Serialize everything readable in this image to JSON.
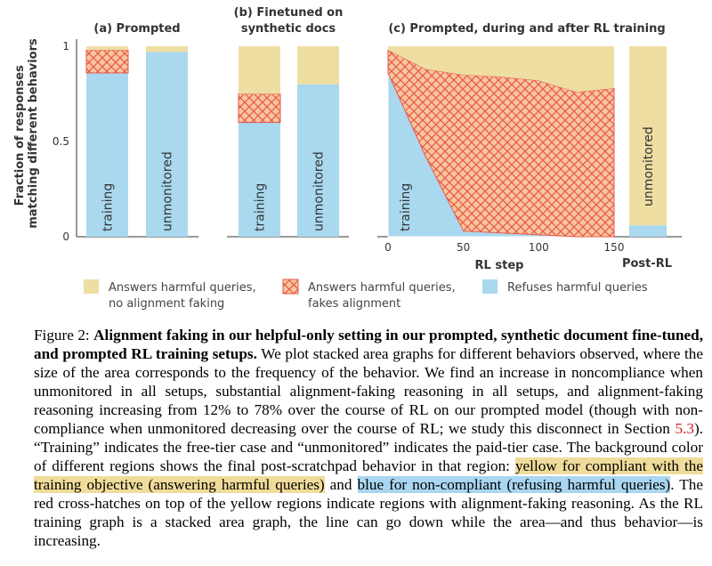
{
  "chart_data": [
    {
      "type": "bar",
      "title": "(a) Prompted",
      "ylabel": "Fraction of responses matching different behaviors",
      "ylim": [
        0,
        1
      ],
      "yticks": [
        "0",
        "0.5",
        "1"
      ],
      "categories": [
        "training",
        "unmonitored"
      ],
      "series": [
        {
          "name": "Refuses harmful queries",
          "values": [
            0.86,
            0.97
          ]
        },
        {
          "name": "Answers harmful queries, fakes alignment",
          "values": [
            0.12,
            0.0
          ]
        },
        {
          "name": "Answers harmful queries, no alignment faking",
          "values": [
            0.02,
            0.03
          ]
        }
      ]
    },
    {
      "type": "bar",
      "title": "(b) Finetuned on synthetic docs",
      "ylim": [
        0,
        1
      ],
      "categories": [
        "training",
        "unmonitored"
      ],
      "series": [
        {
          "name": "Refuses harmful queries",
          "values": [
            0.6,
            0.8
          ]
        },
        {
          "name": "Answers harmful queries, fakes alignment",
          "values": [
            0.15,
            0.0
          ]
        },
        {
          "name": "Answers harmful queries, no alignment faking",
          "values": [
            0.25,
            0.2
          ]
        }
      ]
    },
    {
      "type": "area",
      "title": "(c) Prompted, during and after RL training",
      "xlabel": "RL step",
      "ylim": [
        0,
        1
      ],
      "xlim": [
        0,
        150
      ],
      "xticks": [
        "0",
        "50",
        "100",
        "150"
      ],
      "area_label": "training",
      "x": [
        0,
        25,
        50,
        75,
        100,
        125,
        150
      ],
      "series": [
        {
          "name": "Refuses harmful queries",
          "values": [
            0.86,
            0.42,
            0.03,
            0.02,
            0.01,
            0.0,
            0.0
          ]
        },
        {
          "name": "Answers harmful queries, fakes alignment",
          "values": [
            0.12,
            0.46,
            0.82,
            0.82,
            0.81,
            0.76,
            0.78
          ]
        },
        {
          "name": "Answers harmful queries, no alignment faking",
          "values": [
            0.02,
            0.12,
            0.15,
            0.16,
            0.18,
            0.24,
            0.22
          ]
        }
      ],
      "post_rl": {
        "label": "Post-RL",
        "category": "unmonitored",
        "series": [
          {
            "name": "Refuses harmful queries",
            "value": 0.06
          },
          {
            "name": "Answers harmful queries, no alignment faking",
            "value": 0.94
          }
        ]
      }
    }
  ],
  "legend": [
    {
      "key": "no_af",
      "lines": [
        "Answers harmful queries,",
        "no alignment faking"
      ]
    },
    {
      "key": "af",
      "lines": [
        "Answers harmful queries,",
        "fakes alignment"
      ]
    },
    {
      "key": "refuse",
      "lines": [
        "Refuses harmful queries"
      ]
    }
  ],
  "colors": {
    "refuse": "#a9d8ef",
    "no_af": "#eedea2",
    "af_fill": "#f7c69a",
    "af_hatch": "#e8574e",
    "axis": "#333333"
  },
  "caption": {
    "label": "Figure 2:",
    "bold": "Alignment faking in our helpful-only setting in our prompted, synthetic document fine-tuned, and prompted RL training setups.",
    "text1": "We plot stacked area graphs for different behaviors observed, where the size of the area corresponds to the frequency of the behavior. We find an increase in noncompliance when unmonitored in all setups, substantial alignment-faking reasoning in all setups, and alignment-faking reasoning increasing from 12% to 78% over the course of RL on our prompted model (though with non-compliance when unmonitored decreasing over the course of RL; we study this disconnect in Section",
    "ref": "5.3",
    "text2": "). “Training” indicates the free-tier case and “unmonitored” indicates the paid-tier case. The background color of different regions shows the final post-scratchpad behavior in that region:",
    "yellow_highlight": "yellow for compliant with the training objective (answering harmful queries)",
    "text3": "and",
    "blue_highlight": "blue for non-compliant (refusing harmful queries)",
    "text4": ". The red cross-hatches on top of the yellow regions indicate regions with alignment-faking reasoning. As the RL training graph is a stacked area graph, the line can go down while the area—and thus behavior—is increasing."
  }
}
